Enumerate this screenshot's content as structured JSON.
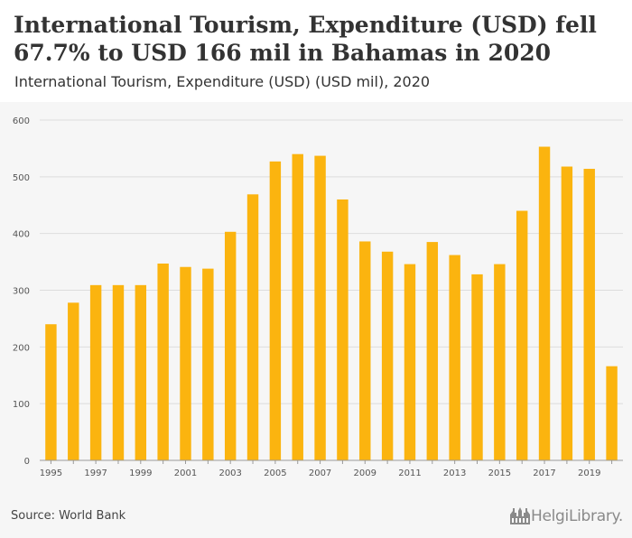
{
  "header": {
    "title": "International Tourism, Expenditure (USD) fell 67.7% to USD 166 mil in Bahamas in 2020",
    "subtitle": "International Tourism, Expenditure (USD) (USD mil), 2020"
  },
  "footer": {
    "source": "Source: World Bank",
    "logo_text": "HelgiLibrary."
  },
  "colors": {
    "bar": "#FBB40F",
    "grid": "#dddddd",
    "axis": "#999999"
  },
  "chart_data": {
    "type": "bar",
    "title": "International Tourism, Expenditure (USD) fell 67.7% to USD 166 mil in Bahamas in 2020",
    "subtitle": "International Tourism, Expenditure (USD) (USD mil), 2020",
    "xlabel": "",
    "ylabel": "",
    "ylim": [
      0,
      600
    ],
    "yticks": [
      0,
      100,
      200,
      300,
      400,
      500,
      600
    ],
    "categories": [
      1995,
      1996,
      1997,
      1998,
      1999,
      2000,
      2001,
      2002,
      2003,
      2004,
      2005,
      2006,
      2007,
      2008,
      2009,
      2010,
      2011,
      2012,
      2013,
      2014,
      2015,
      2016,
      2017,
      2018,
      2019,
      2020
    ],
    "xtick_labels": [
      "1995",
      "1997",
      "1999",
      "2001",
      "2003",
      "2005",
      "2007",
      "2009",
      "2011",
      "2013",
      "2015",
      "2017",
      "2019"
    ],
    "values": [
      240,
      278,
      309,
      309,
      309,
      347,
      341,
      338,
      403,
      469,
      527,
      540,
      537,
      460,
      386,
      368,
      346,
      385,
      362,
      328,
      346,
      440,
      553,
      518,
      514,
      166
    ],
    "grid": true,
    "legend": "none"
  }
}
